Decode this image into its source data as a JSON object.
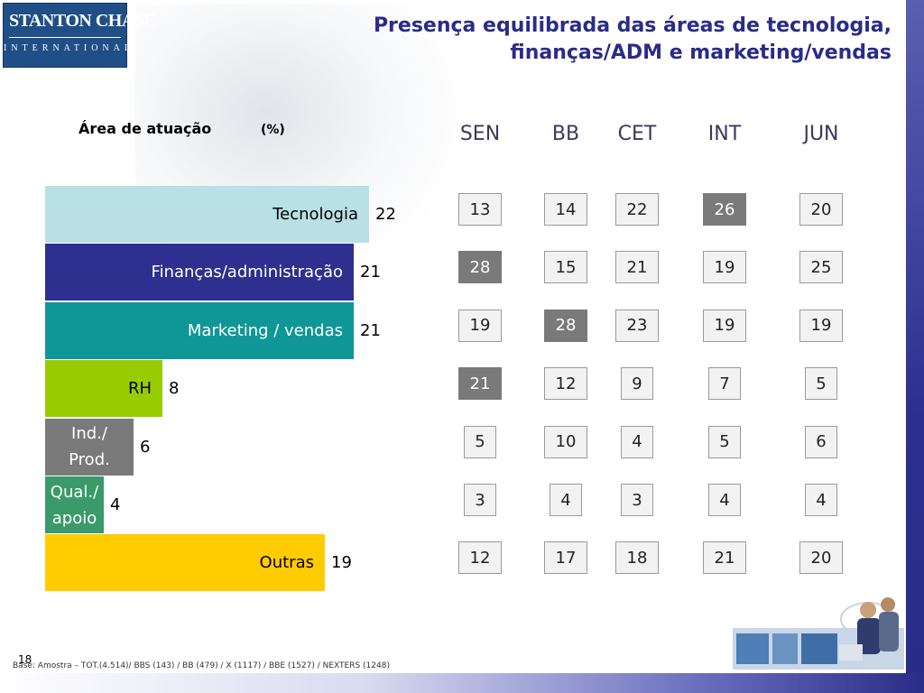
{
  "header": {
    "logo_main": "STANTON CHASE",
    "logo_sub": "INTERNATIONAL",
    "title_line1": "Presença equilibrada das áreas de tecnologia,",
    "title_line2": "finanças/ADM e marketing/vendas"
  },
  "labels": {
    "area": "Área de atuação",
    "pct": "(%)"
  },
  "chart_data": {
    "type": "bar",
    "title": "Área de atuação (%)",
    "orientation": "horizontal",
    "categories": [
      "Tecnologia",
      "Finanças/administração",
      "Marketing / vendas",
      "RH",
      "Ind./ Prod.",
      "Qual./ apoio",
      "Outras"
    ],
    "category_lines": [
      [
        "Tecnologia"
      ],
      [
        "Finanças/administração"
      ],
      [
        "Marketing / vendas"
      ],
      [
        "RH"
      ],
      [
        "Ind./",
        "Prod."
      ],
      [
        "Qual./",
        "apoio"
      ],
      [
        "Outras"
      ]
    ],
    "values": [
      22,
      21,
      21,
      8,
      6,
      4,
      19
    ],
    "colors": [
      "#b9e0e4",
      "#2e2f8e",
      "#0f9696",
      "#99cc00",
      "#7a7a7a",
      "#3a9a6a",
      "#ffcc00"
    ],
    "text_colors": [
      "#000000",
      "#ffffff",
      "#ffffff",
      "#000000",
      "#ffffff",
      "#ffffff",
      "#000000"
    ],
    "table": {
      "columns": [
        "SEN",
        "BB",
        "CET",
        "INT",
        "JUN"
      ],
      "rows": [
        [
          13,
          14,
          22,
          26,
          20
        ],
        [
          28,
          15,
          21,
          19,
          25
        ],
        [
          19,
          28,
          23,
          19,
          19
        ],
        [
          21,
          12,
          9,
          7,
          5
        ],
        [
          5,
          10,
          4,
          5,
          6
        ],
        [
          3,
          4,
          3,
          4,
          4
        ],
        [
          12,
          17,
          18,
          21,
          20
        ]
      ],
      "highlighted": [
        [
          0,
          3
        ],
        [
          1,
          0
        ],
        [
          2,
          1
        ],
        [
          3,
          0
        ]
      ]
    }
  },
  "footer": {
    "page_number": "18",
    "base_text": "Base: Amostra – TOT.(4.514)/ BBS (143) / BB (479) / X (1117) / BBE (1527) / NEXTERS (1248)"
  }
}
